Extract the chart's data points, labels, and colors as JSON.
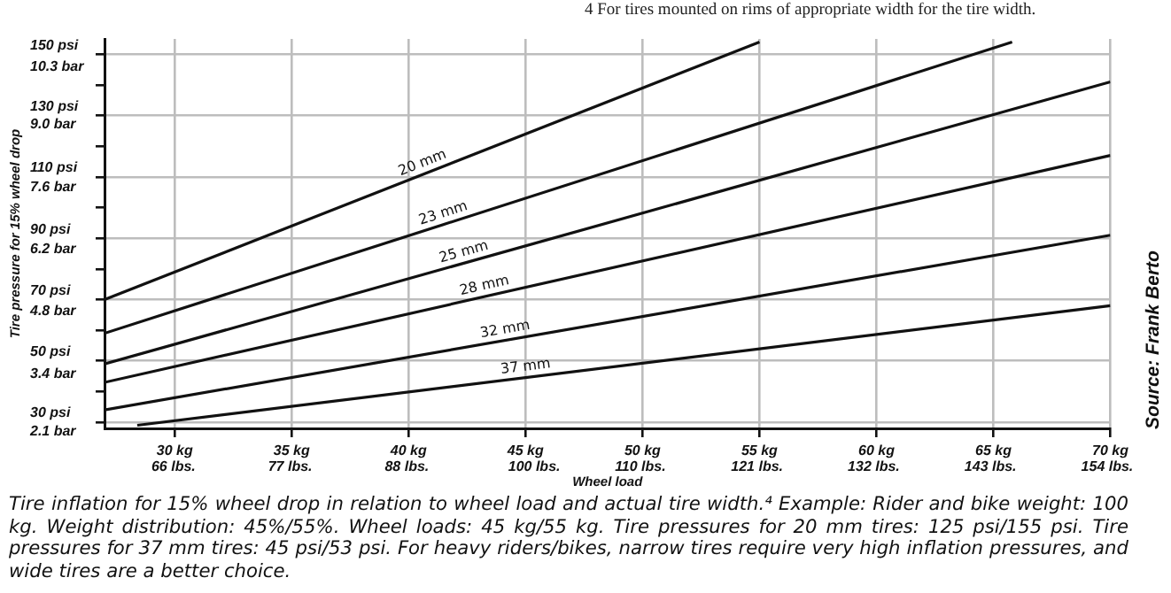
{
  "chart_data": {
    "type": "line",
    "xlabel": "Wheel load",
    "ylabel": "Tire pressure for 15% wheel drop",
    "xlim": [
      27,
      70
    ],
    "xticks": [
      {
        "value": 30,
        "label": "30 kg"
      },
      {
        "value": 35,
        "label": "35 kg"
      },
      {
        "value": 40,
        "label": "40 kg"
      },
      {
        "value": 45,
        "label": "45 kg"
      },
      {
        "value": 50,
        "label": "50 kg"
      },
      {
        "value": 55,
        "label": "55 kg"
      },
      {
        "value": 60,
        "label": "60 kg"
      },
      {
        "value": 65,
        "label": "65 kg"
      },
      {
        "value": 70,
        "label": "70 kg"
      }
    ],
    "x2lim": [
      59.5,
      154.3
    ],
    "x2ticks": [
      {
        "value": 66,
        "label": "66 lbs."
      },
      {
        "value": 77,
        "label": "77 lbs."
      },
      {
        "value": 88,
        "label": "88 lbs."
      },
      {
        "value": 100,
        "label": "100 lbs."
      },
      {
        "value": 110,
        "label": "110 lbs."
      },
      {
        "value": 121,
        "label": "121 lbs."
      },
      {
        "value": 132,
        "label": "132 lbs."
      },
      {
        "value": 143,
        "label": "143 lbs."
      },
      {
        "value": 154,
        "label": "154 lbs."
      }
    ],
    "ylim": [
      28,
      155
    ],
    "yticks": [
      {
        "value": 30,
        "label": "30 psi"
      },
      {
        "value": 40,
        "label": null
      },
      {
        "value": 50,
        "label": "50 psi"
      },
      {
        "value": 60,
        "label": null
      },
      {
        "value": 70,
        "label": "70 psi"
      },
      {
        "value": 80,
        "label": null
      },
      {
        "value": 90,
        "label": "90 psi"
      },
      {
        "value": 100,
        "label": null
      },
      {
        "value": 110,
        "label": "110 psi"
      },
      {
        "value": 120,
        "label": null
      },
      {
        "value": 130,
        "label": "130 psi"
      },
      {
        "value": 140,
        "label": null
      },
      {
        "value": 150,
        "label": "150 psi"
      }
    ],
    "y2lim": [
      1.93,
      10.69
    ],
    "y2ticks": [
      {
        "value": 2.1,
        "label": "2.1 bar"
      },
      {
        "value": 3.4,
        "label": "3.4 bar"
      },
      {
        "value": 4.8,
        "label": "4.8 bar"
      },
      {
        "value": 6.2,
        "label": "6.2 bar"
      },
      {
        "value": 7.6,
        "label": "7.6 bar"
      },
      {
        "value": 9.0,
        "label": "9.0 bar"
      },
      {
        "value": 10.3,
        "label": "10.3 bar"
      }
    ],
    "grid": true,
    "legend": false,
    "marker": "none",
    "line_style": "solid",
    "series": [
      {
        "name": "20 mm",
        "color": "#111111",
        "x": [
          27,
          55
        ],
        "values": [
          70,
          154
        ]
      },
      {
        "name": "23 mm",
        "color": "#111111",
        "x": [
          27,
          65.8
        ],
        "values": [
          59,
          154
        ]
      },
      {
        "name": "25 mm",
        "color": "#111111",
        "x": [
          27,
          70
        ],
        "values": [
          49,
          141
        ]
      },
      {
        "name": "28 mm",
        "color": "#111111",
        "x": [
          27,
          70
        ],
        "values": [
          43,
          117
        ]
      },
      {
        "name": "32 mm",
        "color": "#111111",
        "x": [
          27,
          70
        ],
        "values": [
          34,
          91
        ]
      },
      {
        "name": "37 mm",
        "color": "#111111",
        "x": [
          28.4,
          70
        ],
        "values": [
          29,
          68
        ]
      }
    ],
    "annotations": [
      "4 For tires mounted on rims of appropriate width for the tire width.",
      "Source: Frank Berto",
      "Tire inflation for 15% wheel drop in relation to wheel load and actual tire width.⁴ Example: Rider and bike weight: 100 kg. Weight distribution: 45%/55%. Wheel loads: 45 kg/55 kg. Tire pressures for 20 mm tires: 125 psi/155 psi. Tire pressures for 37 mm tires: 45 psi/53 psi. For heavy riders/bikes, narrow tires require very high inflation pressures, and wide tires are a better choice."
    ]
  }
}
